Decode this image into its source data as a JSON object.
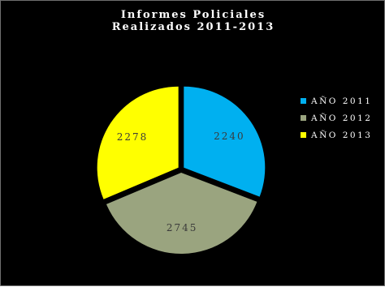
{
  "chart_data": {
    "type": "pie",
    "title_lines": [
      "Informes Policiales",
      "Realizados 2011-2013"
    ],
    "categories": [
      "AÑO 2011",
      "AÑO 2012",
      "AÑO 2013"
    ],
    "values": [
      2240,
      2745,
      2278
    ],
    "data_labels": [
      "2240",
      "2745",
      "2278"
    ],
    "colors": [
      "#00b0f0",
      "#9aa47f",
      "#ffff00"
    ],
    "label_color": "#3a3a3a",
    "legend_position": "right",
    "exploded": true
  }
}
